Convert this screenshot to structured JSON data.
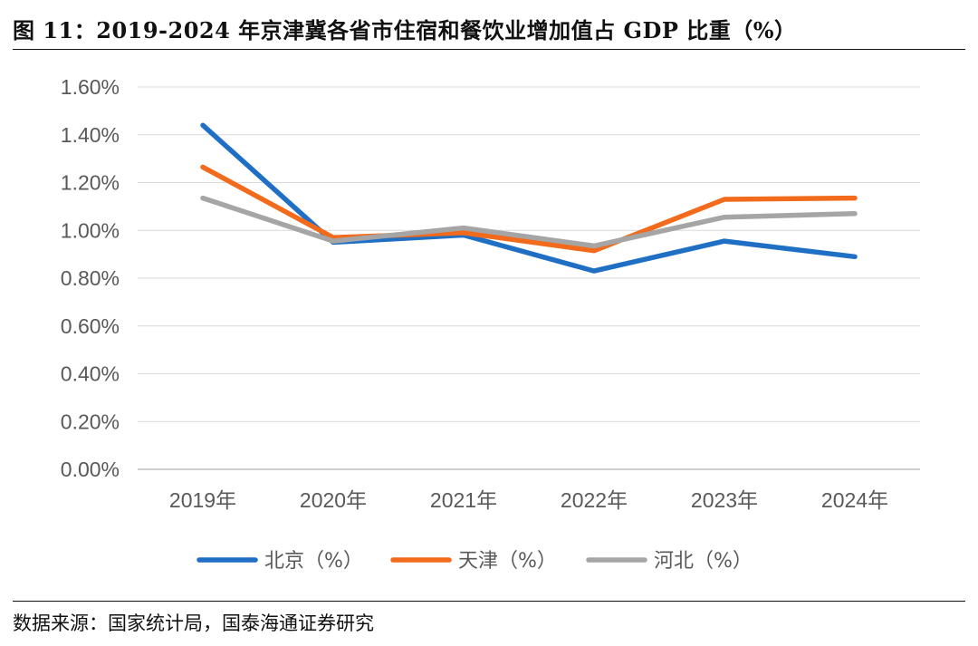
{
  "figure": {
    "title": "图 11：2019-2024 年京津冀各省市住宿和餐饮业增加值占 GDP 比重（%）",
    "source": "数据来源：国家统计局，国泰海通证券研究"
  },
  "chart_data": {
    "type": "line",
    "title": "2019-2024 年京津冀各省市住宿和餐饮业增加值占 GDP 比重（%）",
    "categories": [
      "2019年",
      "2020年",
      "2021年",
      "2022年",
      "2023年",
      "2024年"
    ],
    "ylim": [
      0,
      1.6
    ],
    "yticks": [
      0,
      0.2,
      0.4,
      0.6,
      0.8,
      1.0,
      1.2,
      1.4,
      1.6
    ],
    "ytick_labels": [
      "0.00%",
      "0.20%",
      "0.40%",
      "0.60%",
      "0.80%",
      "1.00%",
      "1.20%",
      "1.40%",
      "1.60%"
    ],
    "grid": true,
    "legend_position": "bottom",
    "series": [
      {
        "name": "北京（%）",
        "color": "#1F6FC5",
        "values": [
          1.44,
          0.95,
          0.98,
          0.83,
          0.955,
          0.89
        ]
      },
      {
        "name": "天津（%）",
        "color": "#F26A1B",
        "values": [
          1.265,
          0.97,
          0.99,
          0.915,
          1.13,
          1.135
        ]
      },
      {
        "name": "河北（%）",
        "color": "#A5A5A5",
        "values": [
          1.135,
          0.955,
          1.01,
          0.935,
          1.055,
          1.07
        ]
      }
    ]
  }
}
